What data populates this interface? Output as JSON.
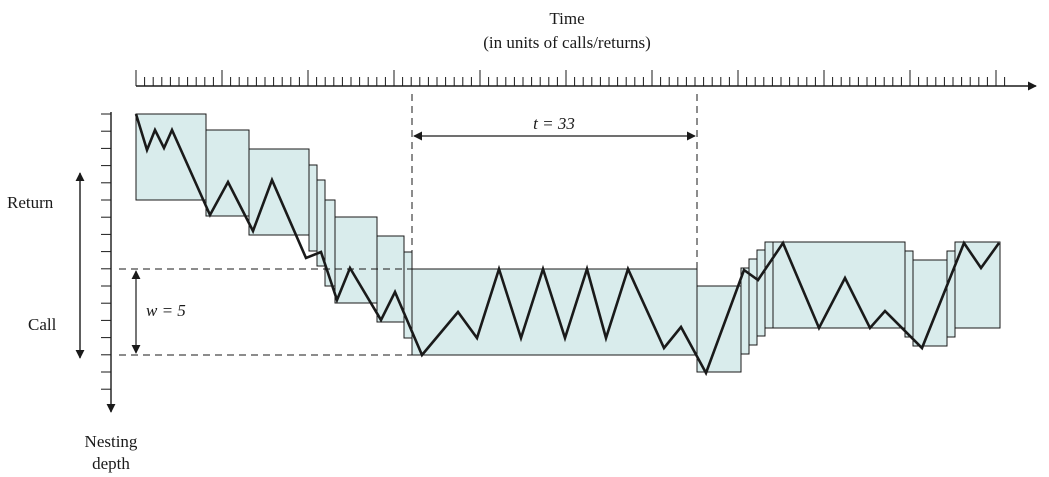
{
  "labels": {
    "time_title": "Time",
    "time_subtitle": "(in units of calls/returns)",
    "t_label": "t = 33",
    "w_label": "w = 5",
    "return_label": "Return",
    "call_label": "Call",
    "nesting_label_1": "Nesting",
    "nesting_label_2": "depth"
  },
  "colors": {
    "box_fill": "#d9ecec",
    "line": "#1a1a1a"
  }
}
